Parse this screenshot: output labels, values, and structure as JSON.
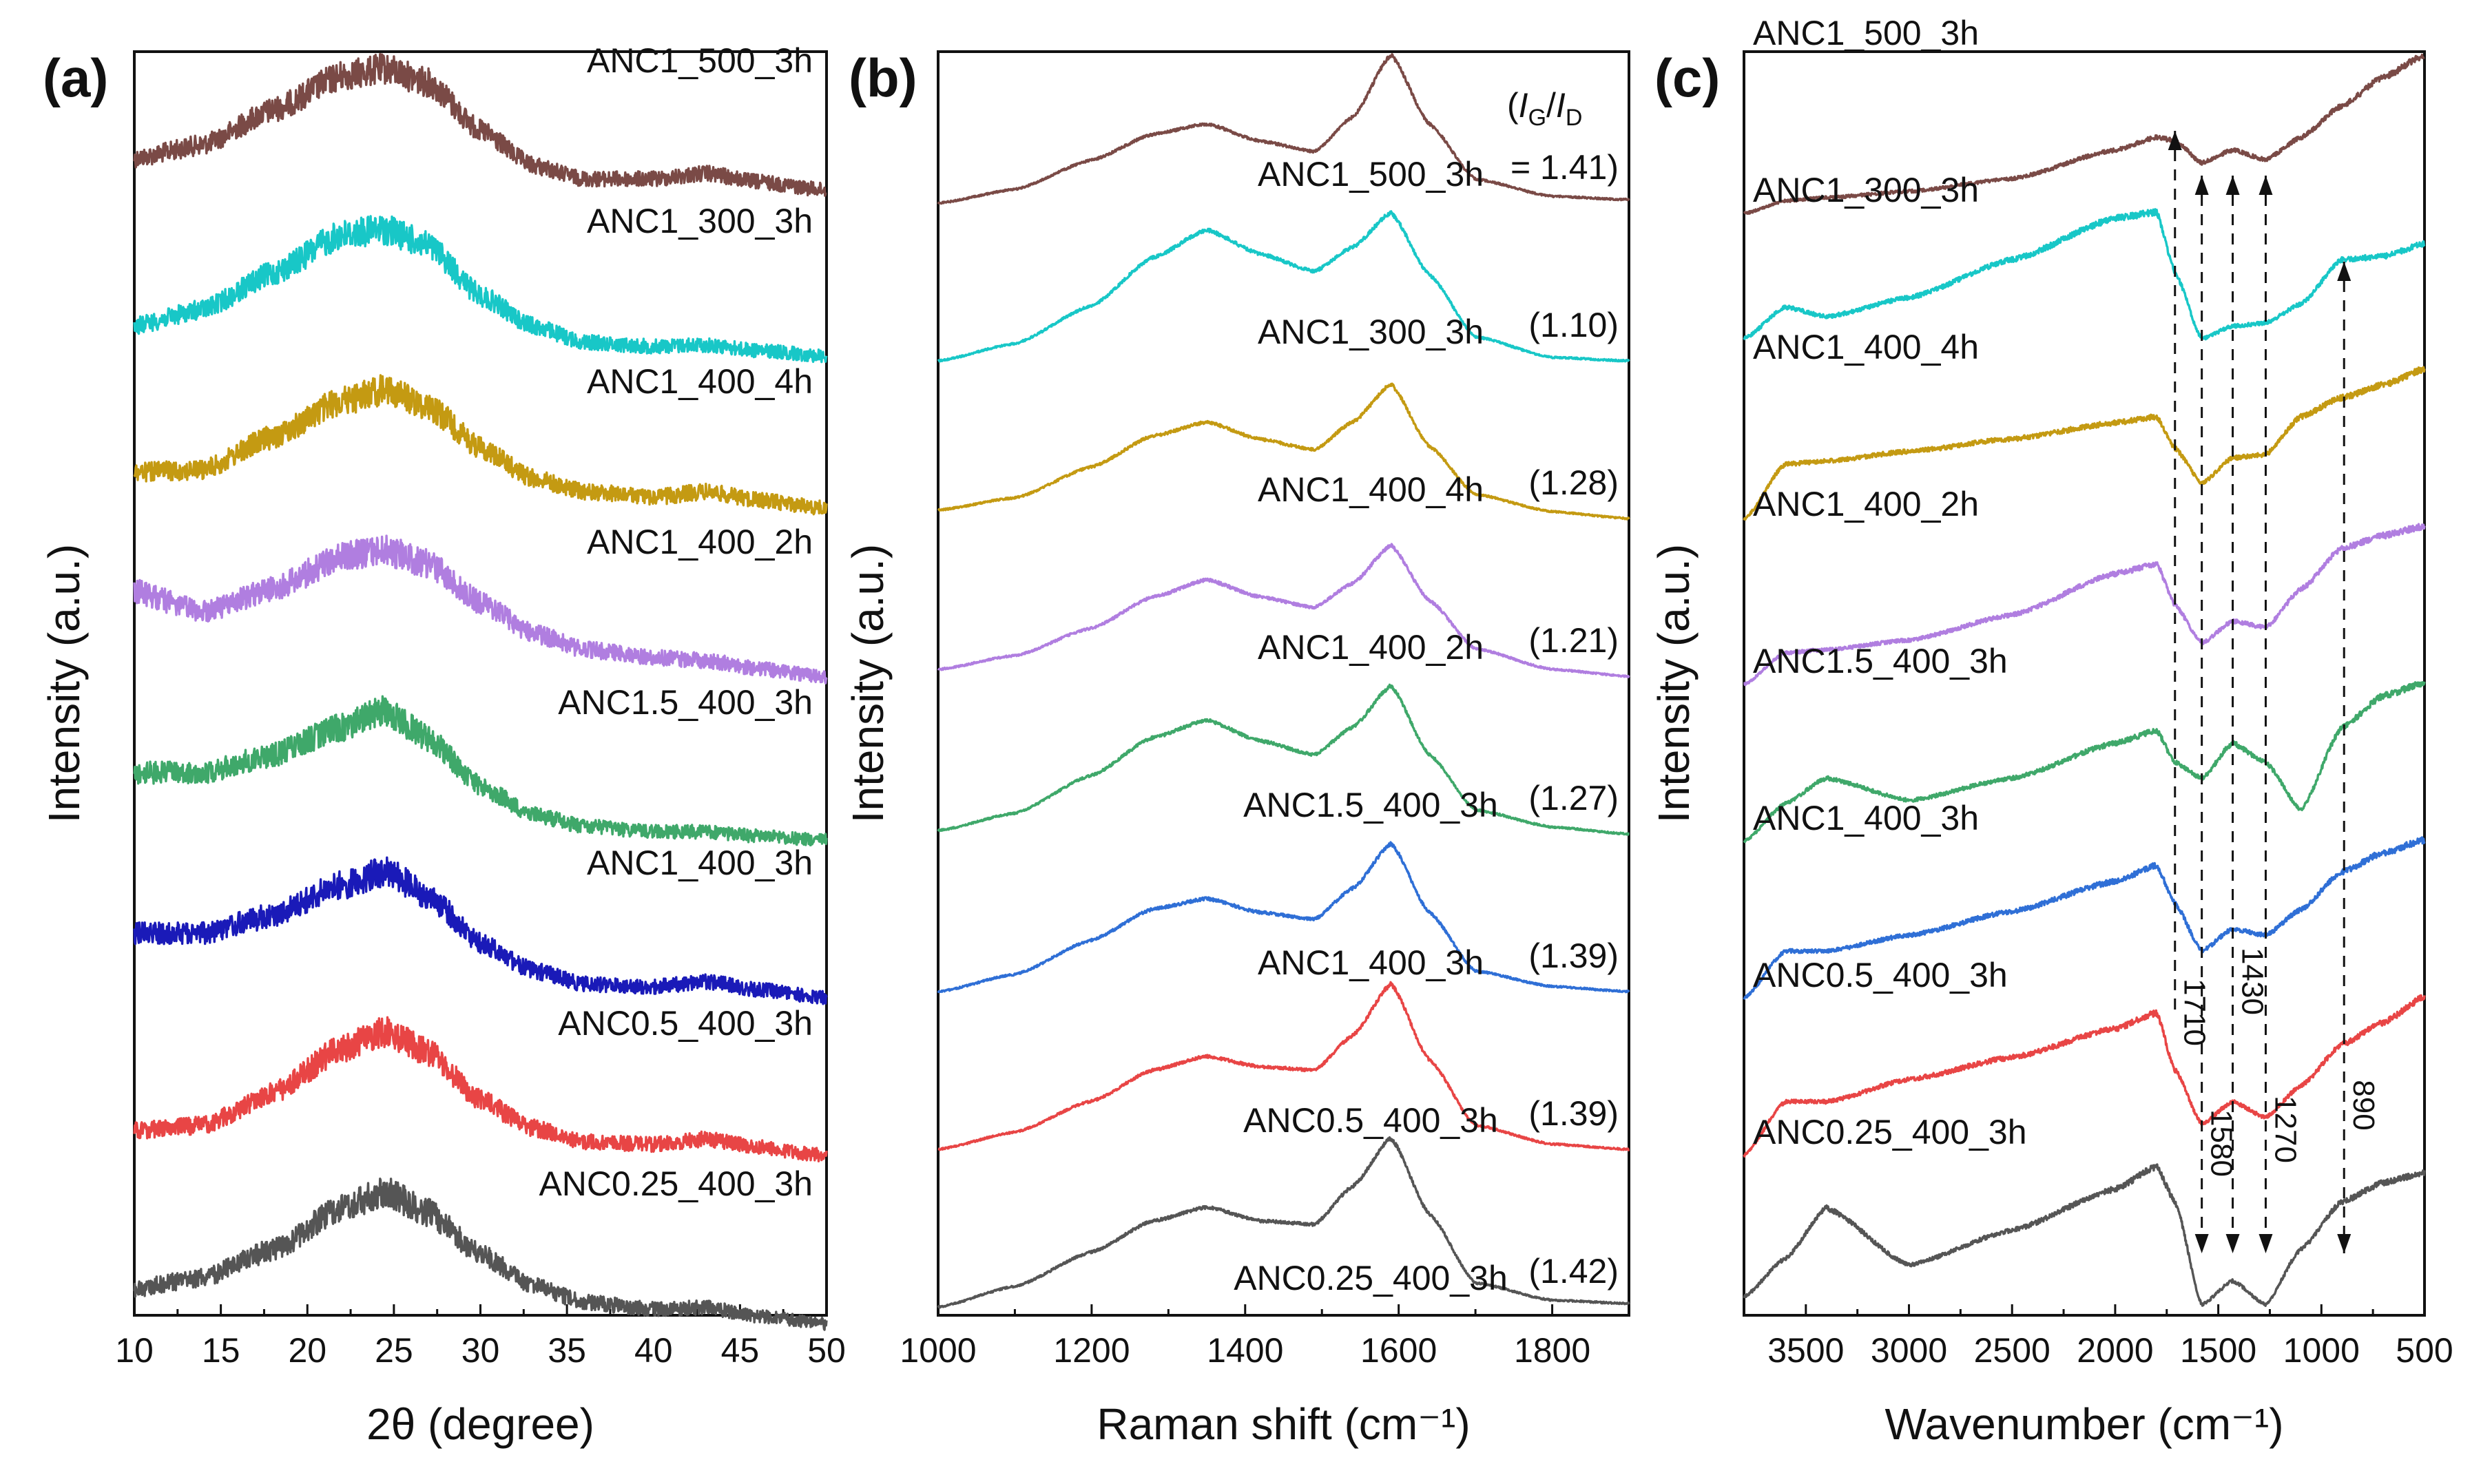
{
  "chart_data": [
    {
      "panel": "(a)",
      "type": "line",
      "title": "",
      "xlabel": "2θ (degree)",
      "ylabel": "Intensity (a.u.)",
      "xlim": [
        10,
        50
      ],
      "xticks": [
        10,
        15,
        20,
        25,
        30,
        35,
        40,
        45,
        50
      ],
      "grid": false,
      "note": "Stacked, offset XRD patterns; broad peak near 24-25 degrees and weak hump near 43 degrees",
      "series": [
        {
          "name": "ANC1_500_3h",
          "color": "#7a4a46",
          "x": [
            10,
            14,
            18,
            22,
            24.5,
            27,
            30,
            33,
            36,
            40,
            43,
            46,
            50
          ],
          "y": [
            0.35,
            0.45,
            0.7,
            0.95,
            1.0,
            0.9,
            0.55,
            0.3,
            0.2,
            0.2,
            0.24,
            0.18,
            0.12
          ]
        },
        {
          "name": "ANC1_300_3h",
          "color": "#18c7c7",
          "x": [
            10,
            14,
            18,
            22,
            24.5,
            27,
            30,
            33,
            36,
            40,
            43,
            46,
            50
          ],
          "y": [
            0.3,
            0.42,
            0.68,
            0.96,
            1.0,
            0.88,
            0.52,
            0.3,
            0.18,
            0.15,
            0.16,
            0.12,
            0.08
          ]
        },
        {
          "name": "ANC1_400_4h",
          "color": "#c49a12",
          "x": [
            10,
            14,
            18,
            22,
            24.5,
            27,
            30,
            33,
            36,
            40,
            43,
            46,
            50
          ],
          "y": [
            0.4,
            0.42,
            0.66,
            0.92,
            1.0,
            0.88,
            0.58,
            0.36,
            0.26,
            0.22,
            0.26,
            0.2,
            0.14
          ]
        },
        {
          "name": "ANC1_400_2h",
          "color": "#b07ee0",
          "x": [
            10,
            14,
            18,
            22,
            24.5,
            27,
            30,
            33,
            36,
            40,
            43,
            46,
            50
          ],
          "y": [
            0.7,
            0.55,
            0.72,
            0.95,
            1.0,
            0.9,
            0.62,
            0.4,
            0.28,
            0.22,
            0.2,
            0.14,
            0.08
          ]
        },
        {
          "name": "ANC1.5_400_3h",
          "color": "#3fa86a",
          "x": [
            10,
            14,
            18,
            22,
            24.5,
            27,
            30,
            33,
            36,
            40,
            43,
            46,
            50
          ],
          "y": [
            0.55,
            0.55,
            0.68,
            0.88,
            1.0,
            0.8,
            0.45,
            0.25,
            0.16,
            0.12,
            0.12,
            0.09,
            0.06
          ]
        },
        {
          "name": "ANC1_400_3h",
          "color": "#1a1ab8",
          "x": [
            10,
            14,
            18,
            22,
            24.5,
            27,
            30,
            33,
            36,
            40,
            43,
            46,
            50
          ],
          "y": [
            0.55,
            0.55,
            0.68,
            0.9,
            1.0,
            0.82,
            0.48,
            0.28,
            0.18,
            0.16,
            0.2,
            0.14,
            0.08
          ]
        },
        {
          "name": "ANC0.5_400_3h",
          "color": "#e84545",
          "x": [
            10,
            14,
            18,
            22,
            24.5,
            27,
            30,
            33,
            36,
            40,
            43,
            46,
            50
          ],
          "y": [
            0.28,
            0.32,
            0.55,
            0.88,
            1.0,
            0.85,
            0.5,
            0.3,
            0.2,
            0.18,
            0.22,
            0.16,
            0.1
          ]
        },
        {
          "name": "ANC0.25_400_3h",
          "color": "#555555",
          "x": [
            10,
            14,
            18,
            22,
            24.5,
            27,
            30,
            33,
            36,
            40,
            43,
            46,
            50
          ],
          "y": [
            0.3,
            0.38,
            0.58,
            0.88,
            1.0,
            0.85,
            0.55,
            0.32,
            0.2,
            0.15,
            0.16,
            0.1,
            0.04
          ]
        }
      ]
    },
    {
      "panel": "(b)",
      "type": "line",
      "title": "",
      "xlabel": "Raman shift (cm⁻¹)",
      "ylabel": "Intensity (a.u.)",
      "xlim": [
        1000,
        1900
      ],
      "xticks": [
        1000,
        1200,
        1400,
        1600,
        1800
      ],
      "grid": false,
      "ratio_header": {
        "prefix": "(",
        "I": "I",
        "G": "G",
        "slash": "/",
        "D": "D",
        "value": "= 1.41)"
      },
      "note": "Stacked Raman spectra showing D band (~1350) and G band (~1590)",
      "series": [
        {
          "name": "ANC1_500_3h",
          "color": "#7a4a46",
          "ratio": "",
          "x": [
            1000,
            1100,
            1200,
            1280,
            1350,
            1420,
            1490,
            1540,
            1590,
            1640,
            1700,
            1800,
            1900
          ],
          "y": [
            0.0,
            0.08,
            0.25,
            0.4,
            0.46,
            0.36,
            0.3,
            0.5,
            0.86,
            0.46,
            0.14,
            0.04,
            0.02
          ]
        },
        {
          "name": "ANC1_300_3h",
          "color": "#18c7c7",
          "ratio": "(1.10)",
          "x": [
            1000,
            1100,
            1200,
            1280,
            1350,
            1420,
            1490,
            1540,
            1590,
            1640,
            1700,
            1800,
            1900
          ],
          "y": [
            0.0,
            0.1,
            0.32,
            0.6,
            0.76,
            0.62,
            0.52,
            0.66,
            0.86,
            0.5,
            0.14,
            0.02,
            0.0
          ]
        },
        {
          "name": "ANC1_400_4h",
          "color": "#c49a12",
          "ratio": "(1.28)",
          "x": [
            1000,
            1100,
            1200,
            1280,
            1350,
            1420,
            1490,
            1540,
            1590,
            1640,
            1700,
            1800,
            1900
          ],
          "y": [
            0.05,
            0.12,
            0.3,
            0.48,
            0.56,
            0.46,
            0.4,
            0.56,
            0.78,
            0.42,
            0.14,
            0.04,
            0.0
          ]
        },
        {
          "name": "ANC1_400_2h",
          "color": "#b07ee0",
          "ratio": "(1.21)",
          "x": [
            1000,
            1100,
            1200,
            1280,
            1350,
            1420,
            1490,
            1540,
            1590,
            1640,
            1700,
            1800,
            1900
          ],
          "y": [
            0.04,
            0.12,
            0.28,
            0.46,
            0.56,
            0.46,
            0.4,
            0.54,
            0.76,
            0.44,
            0.16,
            0.04,
            0.0
          ]
        },
        {
          "name": "ANC1.5_400_3h",
          "color": "#3fa86a",
          "ratio": "(1.27)",
          "x": [
            1000,
            1100,
            1200,
            1280,
            1350,
            1420,
            1490,
            1540,
            1590,
            1640,
            1700,
            1800,
            1900
          ],
          "y": [
            0.02,
            0.12,
            0.34,
            0.56,
            0.66,
            0.54,
            0.46,
            0.62,
            0.86,
            0.46,
            0.14,
            0.04,
            0.0
          ]
        },
        {
          "name": "ANC1_400_3h",
          "color": "#2f6fd6",
          "ratio": "(1.39)",
          "x": [
            1000,
            1100,
            1200,
            1280,
            1350,
            1420,
            1490,
            1540,
            1590,
            1640,
            1700,
            1800,
            1900
          ],
          "y": [
            0.0,
            0.1,
            0.3,
            0.48,
            0.54,
            0.46,
            0.42,
            0.6,
            0.86,
            0.46,
            0.12,
            0.03,
            0.0
          ]
        },
        {
          "name": "ANC0.5_400_3h",
          "color": "#e84545",
          "ratio": "(1.39)",
          "x": [
            1000,
            1100,
            1200,
            1280,
            1350,
            1420,
            1490,
            1540,
            1590,
            1640,
            1700,
            1800,
            1900
          ],
          "y": [
            0.0,
            0.1,
            0.28,
            0.46,
            0.54,
            0.48,
            0.46,
            0.66,
            0.96,
            0.52,
            0.14,
            0.03,
            0.0
          ]
        },
        {
          "name": "ANC0.25_400_3h",
          "color": "#555555",
          "ratio": "(1.42)",
          "x": [
            1000,
            1100,
            1200,
            1280,
            1350,
            1420,
            1490,
            1540,
            1590,
            1640,
            1700,
            1800,
            1900
          ],
          "y": [
            0.0,
            0.12,
            0.32,
            0.5,
            0.58,
            0.5,
            0.48,
            0.7,
            0.98,
            0.54,
            0.14,
            0.04,
            0.02
          ]
        }
      ]
    },
    {
      "panel": "(c)",
      "type": "line",
      "title": "",
      "xlabel": "Wavenumber (cm⁻¹)",
      "ylabel": "Intensity (a.u.)",
      "xlim": [
        3800,
        500
      ],
      "x_reversed": true,
      "xticks": [
        3500,
        3000,
        2500,
        2000,
        1500,
        1000,
        500
      ],
      "grid": false,
      "annotations": [
        {
          "label": "1710",
          "x": 1710
        },
        {
          "label": "1580",
          "x": 1580
        },
        {
          "label": "1430",
          "x": 1430
        },
        {
          "label": "1270",
          "x": 1270
        },
        {
          "label": "890",
          "x": 890
        }
      ],
      "note": "Stacked FTIR spectra, x axis decreasing to the right",
      "series": [
        {
          "name": "ANC1_500_3h",
          "color": "#7a4a46",
          "x": [
            3800,
            3600,
            3400,
            3000,
            2500,
            2000,
            1800,
            1710,
            1580,
            1430,
            1270,
            1100,
            900,
            700,
            500
          ],
          "y": [
            0.0,
            0.08,
            0.1,
            0.14,
            0.22,
            0.4,
            0.48,
            0.46,
            0.32,
            0.4,
            0.34,
            0.48,
            0.68,
            0.86,
            1.0
          ]
        },
        {
          "name": "ANC1_300_3h",
          "color": "#18c7c7",
          "x": [
            3800,
            3600,
            3400,
            3000,
            2500,
            2000,
            1800,
            1710,
            1580,
            1430,
            1270,
            1100,
            900,
            700,
            500
          ],
          "y": [
            0.2,
            0.4,
            0.34,
            0.46,
            0.7,
            0.96,
            1.0,
            0.62,
            0.2,
            0.28,
            0.3,
            0.42,
            0.7,
            0.72,
            0.8
          ]
        },
        {
          "name": "ANC1_400_4h",
          "color": "#c49a12",
          "x": [
            3800,
            3600,
            3400,
            3000,
            2500,
            2000,
            1800,
            1710,
            1580,
            1430,
            1270,
            1100,
            900,
            700,
            500
          ],
          "y": [
            0.05,
            0.4,
            0.42,
            0.48,
            0.56,
            0.66,
            0.7,
            0.5,
            0.28,
            0.44,
            0.46,
            0.7,
            0.82,
            0.9,
            1.0
          ]
        },
        {
          "name": "ANC1_400_2h",
          "color": "#b07ee0",
          "x": [
            3800,
            3600,
            3400,
            3000,
            2500,
            2000,
            1800,
            1710,
            1580,
            1430,
            1270,
            1100,
            900,
            700,
            500
          ],
          "y": [
            0.0,
            0.2,
            0.22,
            0.28,
            0.44,
            0.7,
            0.76,
            0.5,
            0.26,
            0.4,
            0.36,
            0.6,
            0.86,
            0.94,
            1.0
          ]
        },
        {
          "name": "ANC1.5_400_3h",
          "color": "#3fa86a",
          "x": [
            3800,
            3600,
            3400,
            3000,
            2500,
            2000,
            1800,
            1710,
            1580,
            1430,
            1270,
            1100,
            900,
            700,
            500
          ],
          "y": [
            0.0,
            0.24,
            0.4,
            0.26,
            0.4,
            0.62,
            0.7,
            0.5,
            0.4,
            0.62,
            0.5,
            0.2,
            0.72,
            0.92,
            1.0
          ]
        },
        {
          "name": "ANC1_400_3h",
          "color": "#2f6fd6",
          "x": [
            3800,
            3600,
            3400,
            3000,
            2500,
            2000,
            1800,
            1710,
            1580,
            1430,
            1270,
            1100,
            900,
            700,
            500
          ],
          "y": [
            0.0,
            0.3,
            0.3,
            0.4,
            0.55,
            0.74,
            0.84,
            0.6,
            0.3,
            0.44,
            0.4,
            0.56,
            0.8,
            0.92,
            1.0
          ]
        },
        {
          "name": "ANC0.5_400_3h",
          "color": "#e84545",
          "x": [
            3800,
            3600,
            3400,
            3000,
            2500,
            2000,
            1800,
            1710,
            1580,
            1430,
            1270,
            1100,
            900,
            700,
            500
          ],
          "y": [
            0.0,
            0.34,
            0.34,
            0.48,
            0.62,
            0.8,
            0.9,
            0.54,
            0.2,
            0.34,
            0.24,
            0.44,
            0.7,
            0.84,
            1.0
          ]
        },
        {
          "name": "ANC0.25_400_3h",
          "color": "#555555",
          "x": [
            3800,
            3600,
            3400,
            3000,
            2500,
            2000,
            1800,
            1710,
            1580,
            1430,
            1270,
            1100,
            900,
            700,
            500
          ],
          "y": [
            0.1,
            0.34,
            0.66,
            0.3,
            0.52,
            0.78,
            0.92,
            0.7,
            0.05,
            0.2,
            0.05,
            0.4,
            0.7,
            0.82,
            0.88
          ]
        }
      ]
    }
  ]
}
